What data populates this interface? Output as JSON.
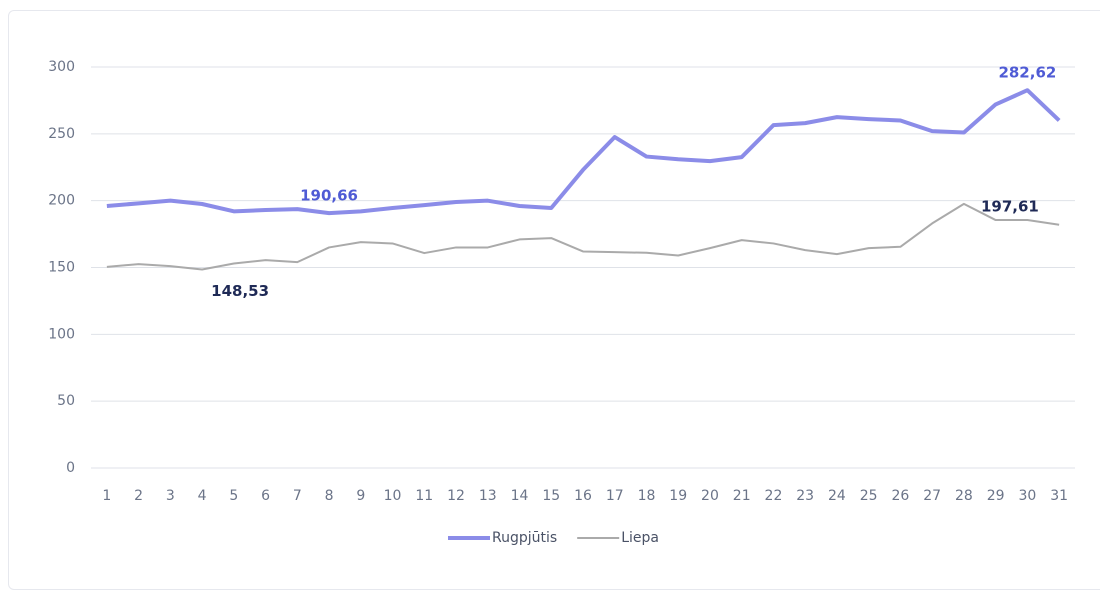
{
  "chart_data": {
    "type": "line",
    "categories": [
      1,
      2,
      3,
      4,
      5,
      6,
      7,
      8,
      9,
      10,
      11,
      12,
      13,
      14,
      15,
      16,
      17,
      18,
      19,
      20,
      21,
      22,
      23,
      24,
      25,
      26,
      27,
      28,
      29,
      30,
      31
    ],
    "series": [
      {
        "name": "Rugpjūtis",
        "color": "#8b8ce8",
        "label_color": "#4f5bd5",
        "values": [
          196,
          198,
          200,
          197.5,
          192,
          193,
          193.7,
          190.66,
          192,
          194.5,
          196.7,
          199,
          200,
          196,
          194.5,
          223,
          247.6,
          233,
          231,
          229.6,
          232.6,
          256.5,
          258,
          262.5,
          261,
          260,
          252,
          251,
          272,
          282.62,
          260
        ],
        "value_labels": [
          null,
          null,
          null,
          null,
          null,
          null,
          null,
          "190,66",
          null,
          null,
          null,
          null,
          null,
          null,
          null,
          null,
          null,
          null,
          null,
          null,
          null,
          null,
          null,
          null,
          null,
          null,
          null,
          null,
          null,
          "282,62",
          null
        ]
      },
      {
        "name": "Liepa",
        "color": "#aaaaaa",
        "label_color": "#1f2a56",
        "values": [
          150.5,
          152.5,
          151,
          148.53,
          153,
          155.5,
          154,
          165,
          169,
          168,
          160.8,
          165,
          165,
          171,
          172,
          162,
          161.5,
          161,
          159,
          164.5,
          170.5,
          168,
          163,
          160,
          164.5,
          165.5,
          183,
          197.61,
          185.5,
          185.5,
          182
        ],
        "value_labels": [
          null,
          null,
          null,
          "148,53",
          null,
          null,
          null,
          null,
          null,
          null,
          null,
          null,
          null,
          null,
          null,
          null,
          null,
          null,
          null,
          null,
          null,
          null,
          null,
          null,
          null,
          null,
          null,
          "197,61",
          null,
          null,
          null
        ]
      }
    ],
    "ylim": [
      0,
      300
    ],
    "yticks": [
      0,
      50,
      100,
      150,
      200,
      250,
      300
    ],
    "grid": true,
    "legend": "bottom"
  }
}
